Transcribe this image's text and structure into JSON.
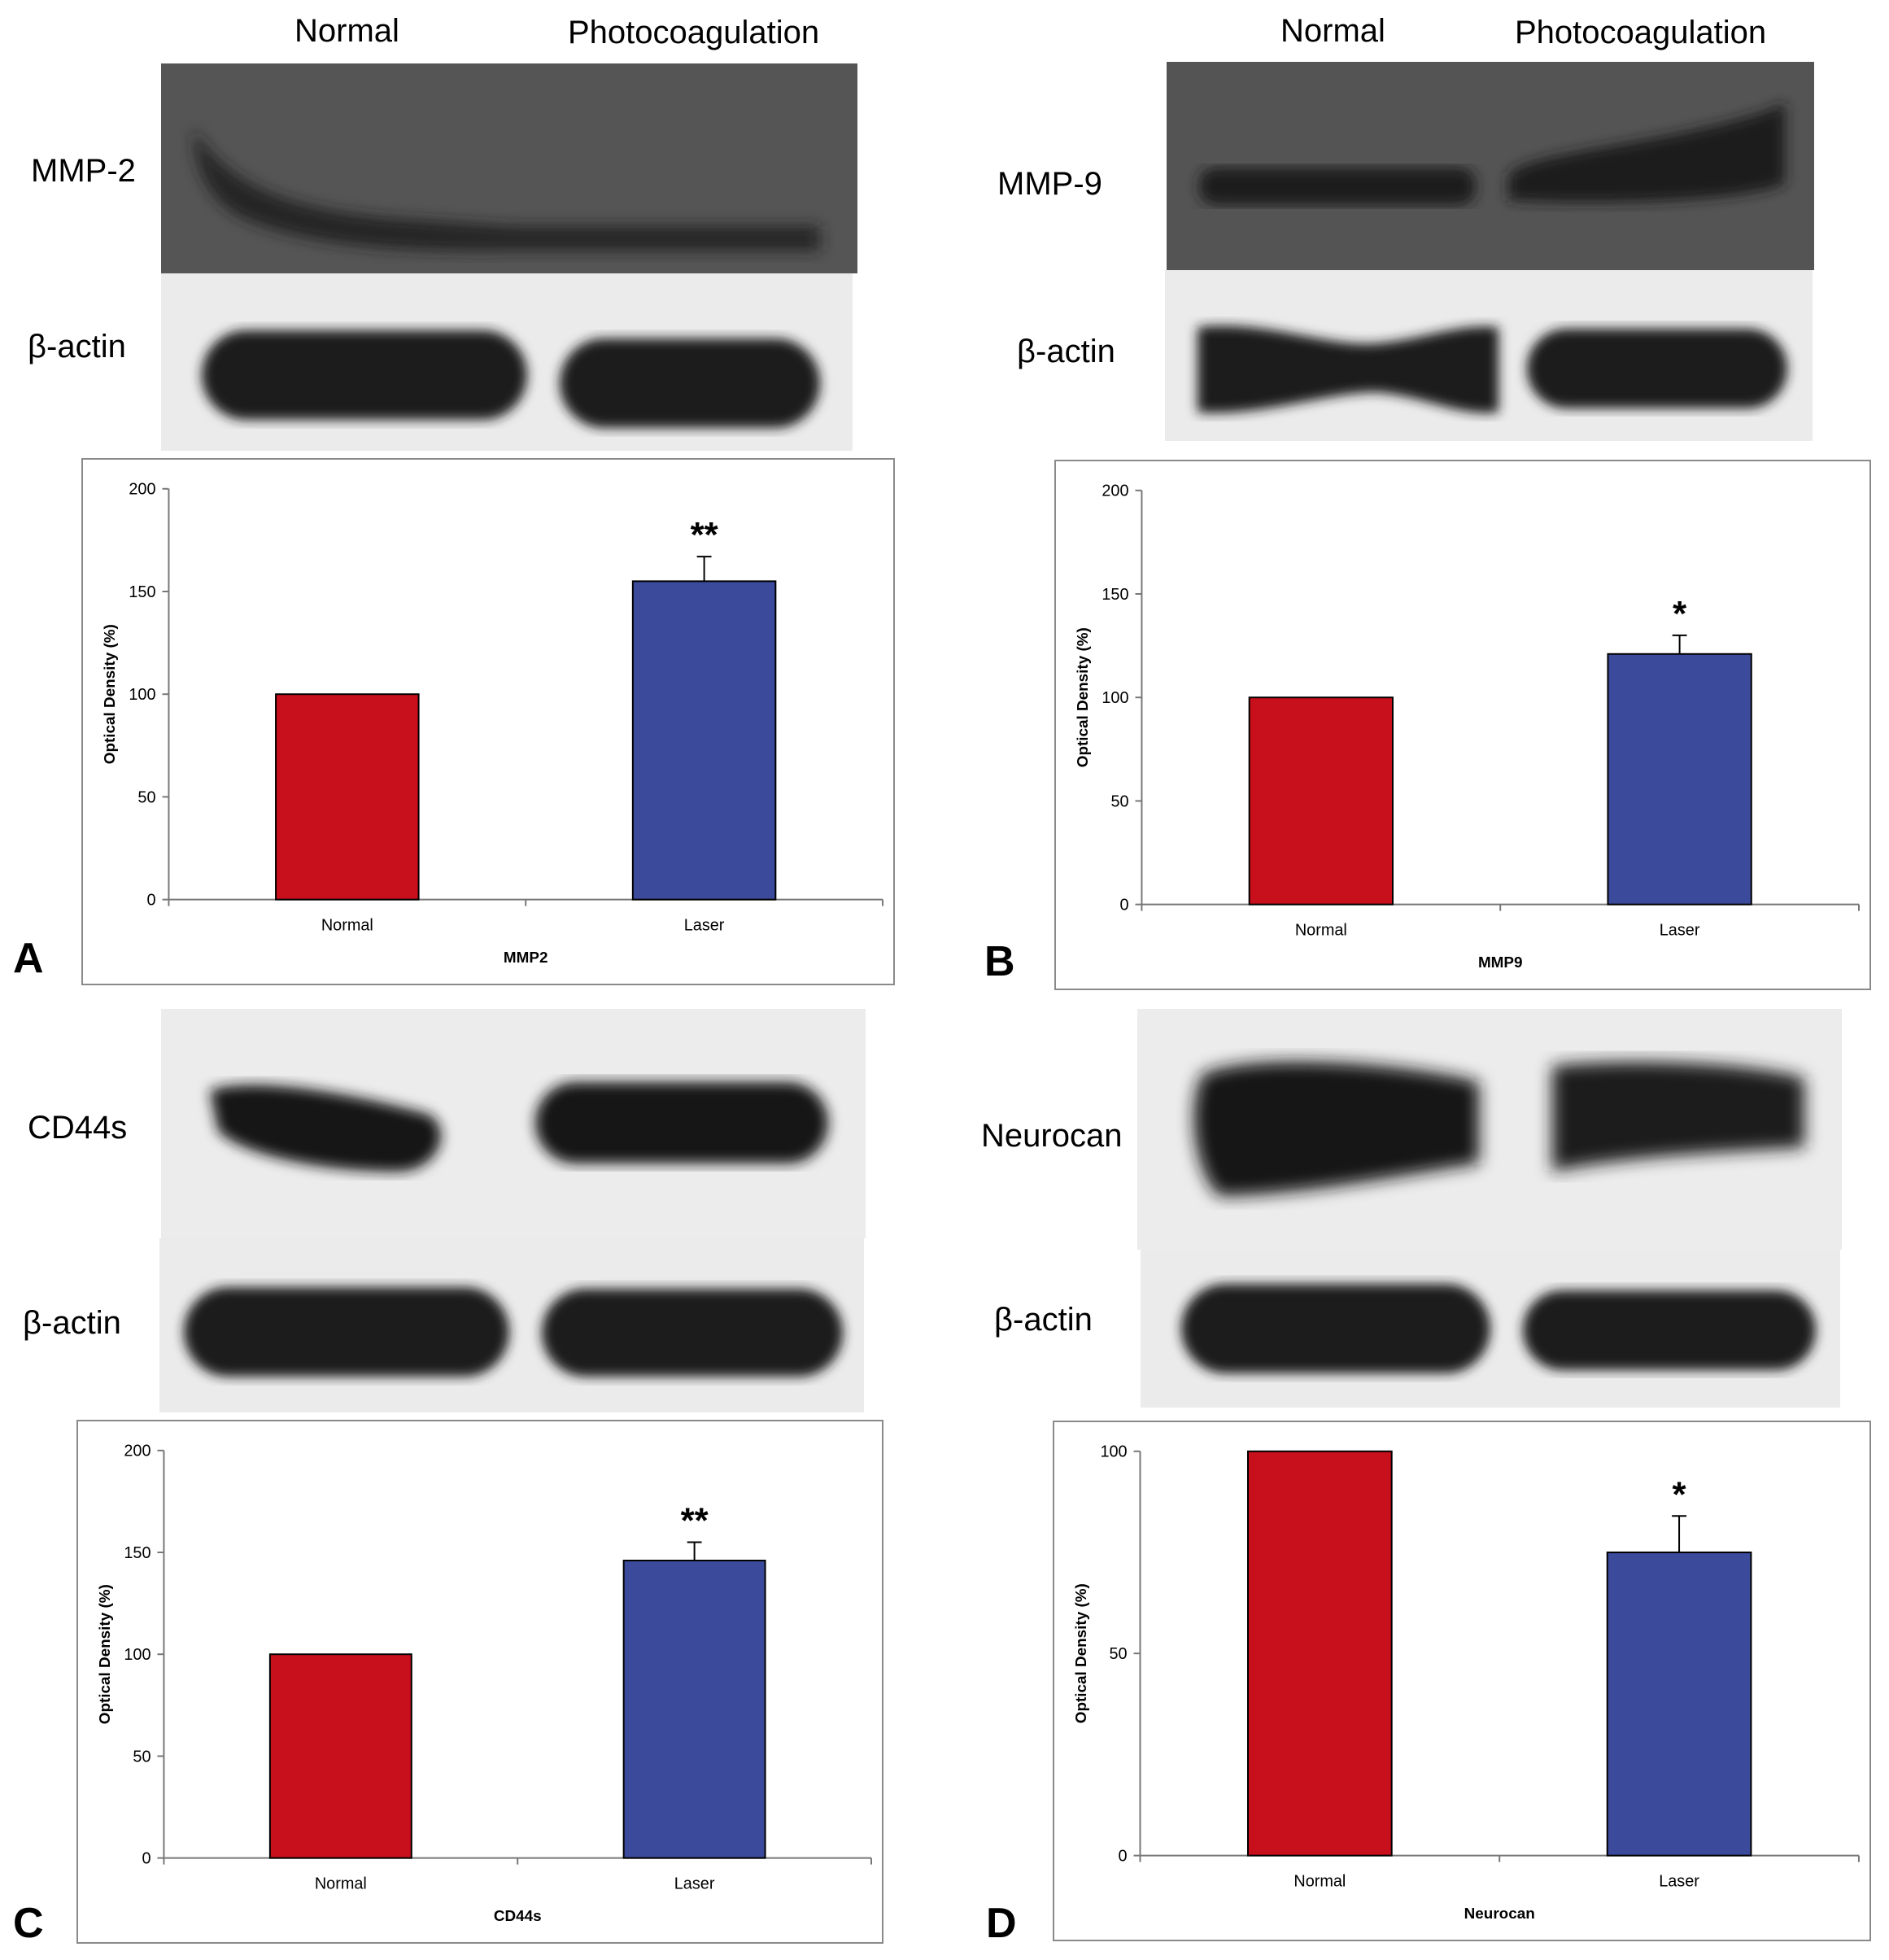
{
  "colors": {
    "normal_bar": "#c8101c",
    "laser_bar": "#3b4a9a",
    "grey_band_bg": "#545454",
    "light_band_bg": "#ebebeb",
    "band_dark": "#1a1a1a"
  },
  "panels": [
    {
      "letter": "A",
      "lane_headers": [
        "Normal",
        "Photocoagulation"
      ],
      "blot_labels": [
        "MMP-2",
        "β-actin"
      ],
      "chart_data": {
        "type": "bar",
        "categories": [
          "Normal",
          "Laser"
        ],
        "values": [
          100,
          155
        ],
        "errors": [
          0,
          12
        ],
        "significance": [
          "",
          "**"
        ],
        "ylabel": "Optical Density (%)",
        "xlabel": "MMP2",
        "ylim": [
          0,
          200
        ],
        "yticks": [
          0,
          50,
          100,
          150,
          200
        ],
        "grid": false
      }
    },
    {
      "letter": "B",
      "lane_headers": [
        "Normal",
        "Photocoagulation"
      ],
      "blot_labels": [
        "MMP-9",
        "β-actin"
      ],
      "chart_data": {
        "type": "bar",
        "categories": [
          "Normal",
          "Laser"
        ],
        "values": [
          100,
          121
        ],
        "errors": [
          0,
          9
        ],
        "significance": [
          "",
          "*"
        ],
        "ylabel": "Optical Density (%)",
        "xlabel": "MMP9",
        "ylim": [
          0,
          200
        ],
        "yticks": [
          0,
          50,
          100,
          150,
          200
        ],
        "grid": false
      }
    },
    {
      "letter": "C",
      "lane_headers": [],
      "blot_labels": [
        "CD44s",
        "β-actin"
      ],
      "chart_data": {
        "type": "bar",
        "categories": [
          "Normal",
          "Laser"
        ],
        "values": [
          100,
          146
        ],
        "errors": [
          0,
          9
        ],
        "significance": [
          "",
          "**"
        ],
        "ylabel": "Optical Density (%)",
        "xlabel": "CD44s",
        "ylim": [
          0,
          200
        ],
        "yticks": [
          0,
          50,
          100,
          150,
          200
        ],
        "grid": false
      }
    },
    {
      "letter": "D",
      "lane_headers": [],
      "blot_labels": [
        "Neurocan",
        "β-actin"
      ],
      "chart_data": {
        "type": "bar",
        "categories": [
          "Normal",
          "Laser"
        ],
        "values": [
          100,
          75
        ],
        "errors": [
          0,
          9
        ],
        "significance": [
          "",
          "*"
        ],
        "ylabel": "Optical Density (%)",
        "xlabel": "Neurocan",
        "ylim": [
          0,
          100
        ],
        "yticks": [
          0,
          50,
          100
        ],
        "grid": false
      }
    }
  ]
}
